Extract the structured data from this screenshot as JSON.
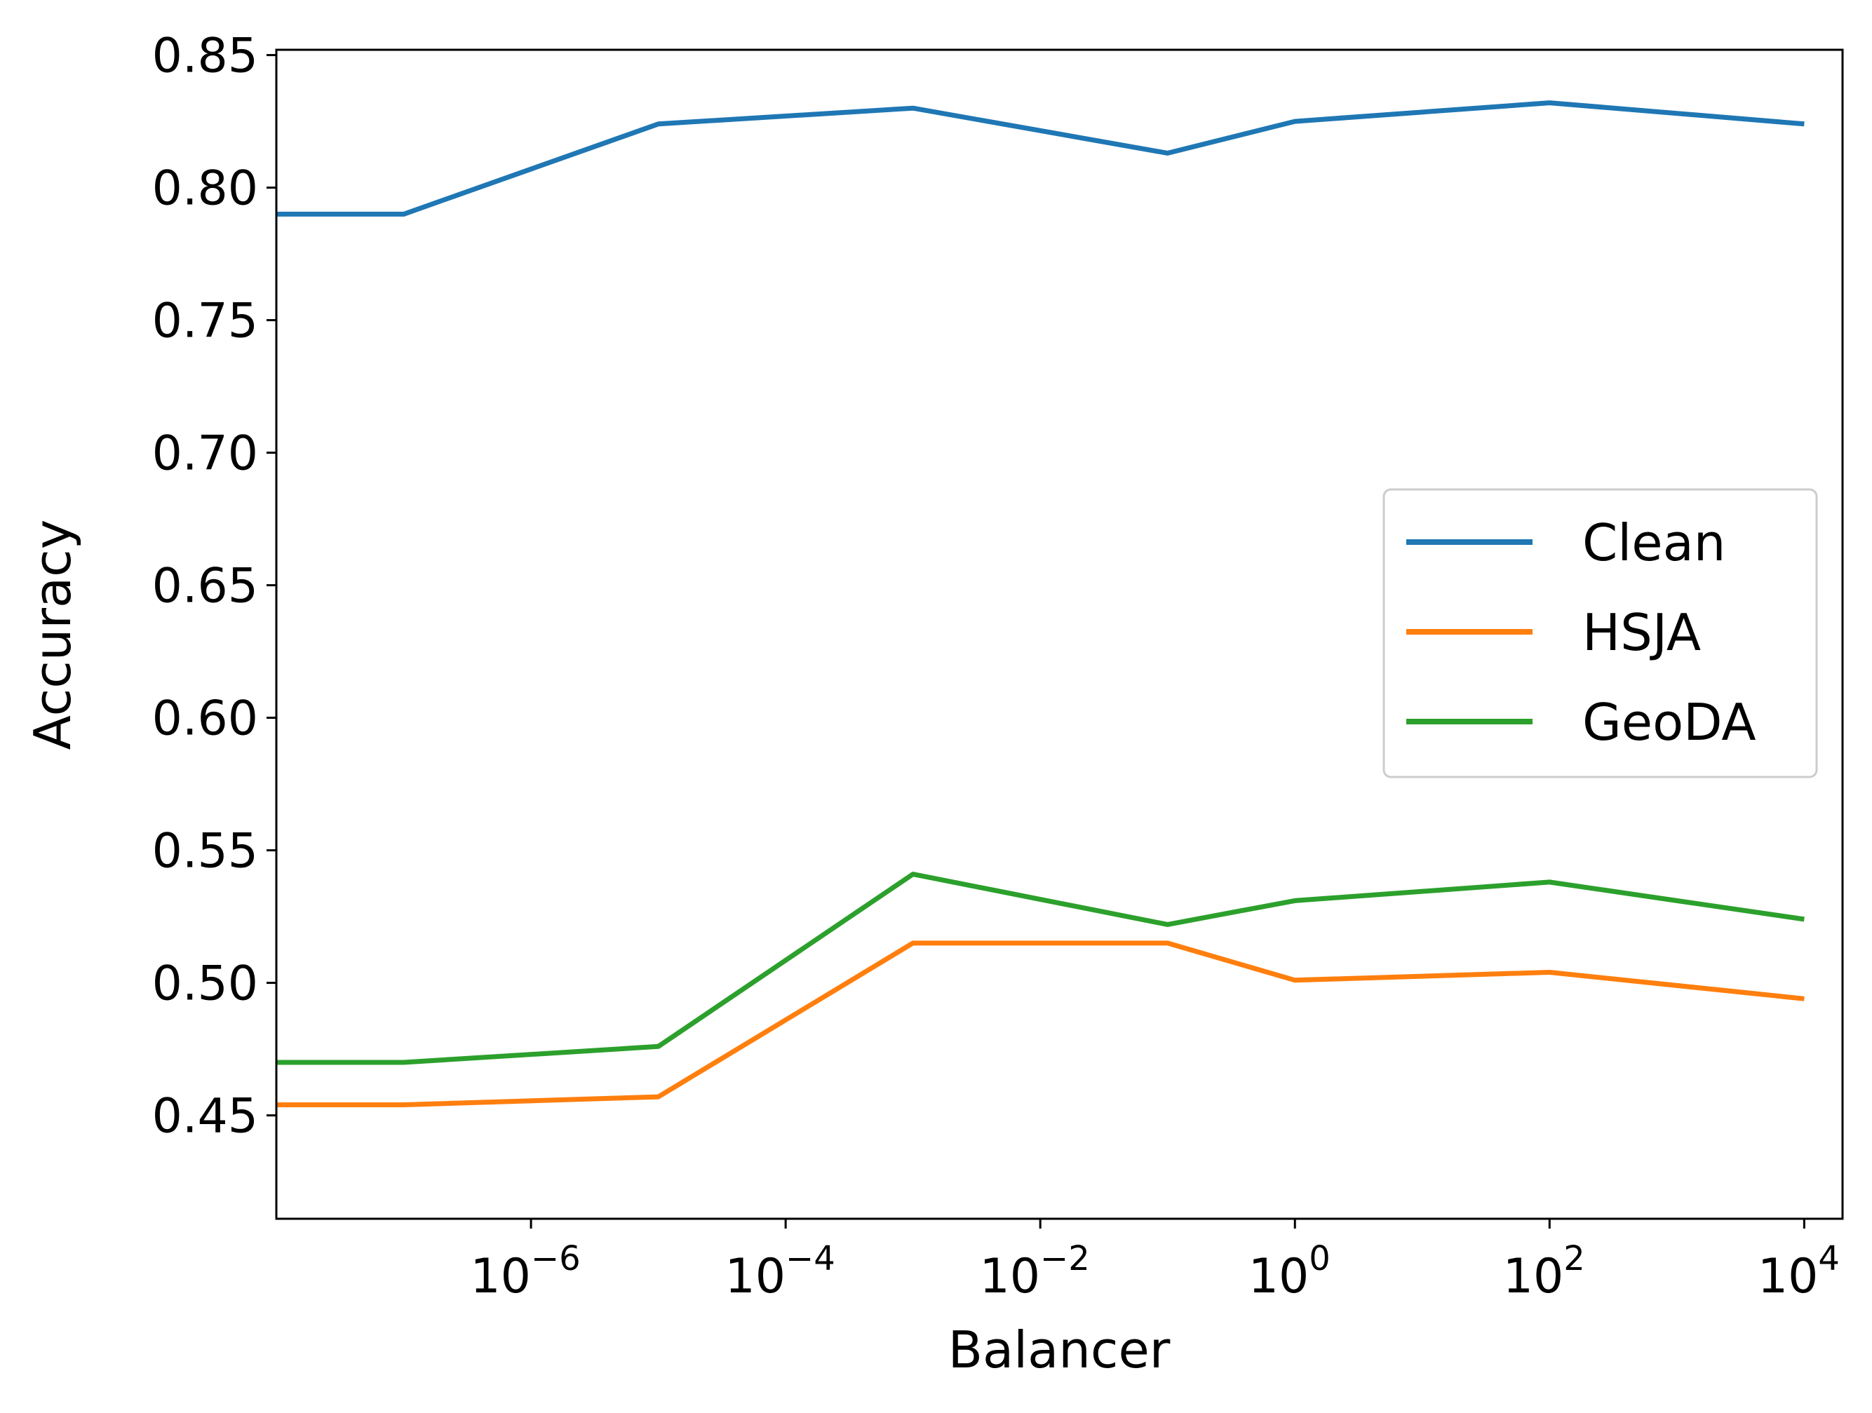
{
  "chart_data": {
    "type": "line",
    "title": "",
    "xlabel": "Balancer",
    "ylabel": "Accuracy",
    "xscale": "log",
    "xlim": [
      1e-08,
      20000
    ],
    "ylim": [
      0.411,
      0.852
    ],
    "xticks": [
      {
        "value": 1e-06,
        "base": "10",
        "exp": "−6"
      },
      {
        "value": 0.0001,
        "base": "10",
        "exp": "−4"
      },
      {
        "value": 0.01,
        "base": "10",
        "exp": "−2"
      },
      {
        "value": 1,
        "base": "10",
        "exp": "0"
      },
      {
        "value": 100,
        "base": "10",
        "exp": "2"
      },
      {
        "value": 10000,
        "base": "10",
        "exp": "4"
      }
    ],
    "yticks": [
      "0.45",
      "0.50",
      "0.55",
      "0.60",
      "0.65",
      "0.70",
      "0.75",
      "0.80",
      "0.85"
    ],
    "x": [
      1e-08,
      1e-07,
      1e-05,
      0.001,
      0.1,
      1,
      100,
      10000
    ],
    "series": [
      {
        "name": "Clean",
        "color": "#1f77b4",
        "values": [
          0.79,
          0.79,
          0.824,
          0.83,
          0.813,
          0.825,
          0.832,
          0.824
        ]
      },
      {
        "name": "HSJA",
        "color": "#ff7f0e",
        "values": [
          0.454,
          0.454,
          0.457,
          0.515,
          0.515,
          0.501,
          0.504,
          0.494
        ]
      },
      {
        "name": "GeoDA",
        "color": "#2ca02c",
        "values": [
          0.47,
          0.47,
          0.476,
          0.541,
          0.522,
          0.531,
          0.538,
          0.524
        ]
      }
    ],
    "legend": {
      "position": "center-right"
    },
    "grid": false
  }
}
